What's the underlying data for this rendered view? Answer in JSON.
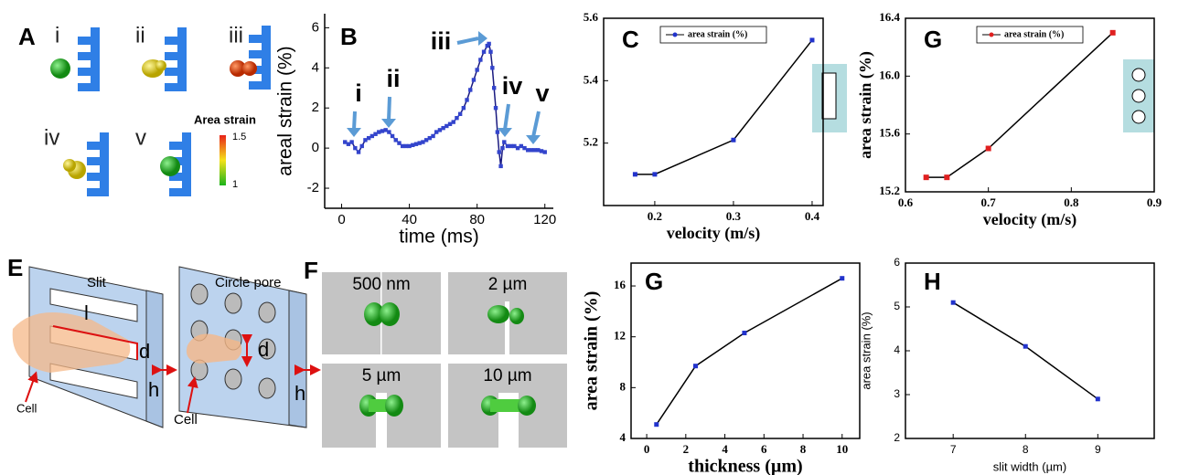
{
  "panel_a": {
    "label": "A",
    "stages": [
      "i",
      "ii",
      "iii",
      "iv",
      "v"
    ],
    "colorbar_title": "Area strain",
    "colorbar_ticks": [
      1.5,
      1
    ]
  },
  "panel_e": {
    "label": "E",
    "left_title": "Slit",
    "right_title": "Circle pore",
    "left_labels": [
      "l",
      "d",
      "h",
      "Cell"
    ],
    "right_labels": [
      "d",
      "h",
      "Cell"
    ]
  },
  "panel_f": {
    "label": "F",
    "sizes": [
      "500 nm",
      "2 µm",
      "5 µm",
      "10 µm"
    ]
  },
  "chart_data": [
    {
      "type": "line",
      "label": "B",
      "xlabel": "time (ms)",
      "ylabel": "areal strain (%)",
      "x": [
        2,
        4,
        6,
        8,
        10,
        12,
        14,
        16,
        18,
        20,
        22,
        24,
        26,
        28,
        30,
        32,
        34,
        36,
        38,
        40,
        42,
        44,
        46,
        48,
        50,
        52,
        54,
        56,
        58,
        60,
        62,
        64,
        66,
        68,
        70,
        72,
        74,
        76,
        78,
        80,
        82,
        84,
        86,
        87,
        88,
        89,
        90,
        91,
        92,
        93,
        94,
        95,
        96,
        98,
        100,
        102,
        104,
        106,
        108,
        110,
        112,
        114,
        116,
        118,
        120
      ],
      "values": [
        0.3,
        0.2,
        0.3,
        0.0,
        -0.2,
        0.1,
        0.4,
        0.5,
        0.6,
        0.7,
        0.8,
        0.85,
        0.9,
        0.8,
        0.6,
        0.4,
        0.25,
        0.1,
        0.1,
        0.1,
        0.15,
        0.2,
        0.25,
        0.3,
        0.4,
        0.5,
        0.6,
        0.8,
        0.9,
        1.0,
        1.1,
        1.2,
        1.3,
        1.5,
        1.7,
        2.0,
        2.4,
        2.9,
        3.4,
        3.9,
        4.4,
        4.8,
        5.1,
        5.2,
        4.8,
        4.0,
        3.0,
        2.0,
        0.8,
        -0.2,
        -0.9,
        0.0,
        0.3,
        0.1,
        0.1,
        0.1,
        0.0,
        0.1,
        0.0,
        -0.1,
        -0.1,
        -0.1,
        -0.1,
        -0.15,
        -0.2
      ],
      "color": "#3344cc",
      "line_color": "#1a1a80",
      "xlim": [
        -10,
        125
      ],
      "ylim": [
        -3,
        6.7
      ],
      "xticks": [
        0,
        40,
        80,
        120
      ],
      "yticks": [
        -2,
        0,
        2,
        4,
        6
      ],
      "annotations": [
        "i",
        "ii",
        "iii",
        "iv",
        "v"
      ]
    },
    {
      "type": "line",
      "label": "C",
      "xlabel": "velocity (m/s)",
      "x": [
        0.175,
        0.2,
        0.3,
        0.4
      ],
      "series": [
        {
          "name": "area strain (%)",
          "color": "#2233cc",
          "values": [
            5.1,
            5.1,
            5.21,
            5.53
          ]
        }
      ],
      "line_color": "#000000",
      "legend": "upper center",
      "xlim": [
        0.135,
        0.414
      ],
      "ylim": [
        5.0,
        5.6
      ],
      "xticks": [
        0.2,
        0.3,
        0.4
      ],
      "yticks": [
        5.2,
        5.4,
        5.6
      ]
    },
    {
      "type": "line",
      "label": "G",
      "xlabel": "velocity (m/s)",
      "ylabel": "area strain (%)",
      "x": [
        0.625,
        0.65,
        0.7,
        0.85
      ],
      "series": [
        {
          "name": "area strain (%)",
          "color": "#e02020",
          "values": [
            15.3,
            15.3,
            15.5,
            16.3
          ]
        }
      ],
      "line_color": "#000000",
      "legend": "upper center",
      "xlim": [
        0.6,
        0.9
      ],
      "ylim": [
        15.2,
        16.4
      ],
      "xticks": [
        0.6,
        0.7,
        0.8,
        0.9
      ],
      "yticks": [
        15.2,
        15.6,
        {
          "value": 16,
          "label": "16.0"
        },
        16.4
      ]
    },
    {
      "type": "line",
      "label": "G",
      "xlabel": "thickness (µm)",
      "ylabel": "area strain (%)",
      "x": [
        0.5,
        2.5,
        5,
        10
      ],
      "values": [
        5.1,
        9.7,
        12.3,
        16.6
      ],
      "color": "#2233cc",
      "line_color": "#000000",
      "xlim": [
        -0.8,
        10.9
      ],
      "ylim": [
        4,
        17.8
      ],
      "xticks": [
        0,
        2,
        4,
        6,
        8,
        10
      ],
      "yticks": [
        4,
        8,
        12,
        16
      ]
    },
    {
      "type": "line",
      "label": "H",
      "xlabel": "slit width (µm)",
      "ylabel": "area strain (%)",
      "x": [
        7,
        8,
        9
      ],
      "values": [
        5.1,
        4.1,
        2.9
      ],
      "color": "#2233cc",
      "line_color": "#000000",
      "xlim": [
        6.34,
        9.78
      ],
      "ylim": [
        2,
        6
      ],
      "xticks": [
        7,
        8,
        9
      ],
      "yticks": [
        2,
        3,
        4,
        5,
        6
      ]
    }
  ]
}
